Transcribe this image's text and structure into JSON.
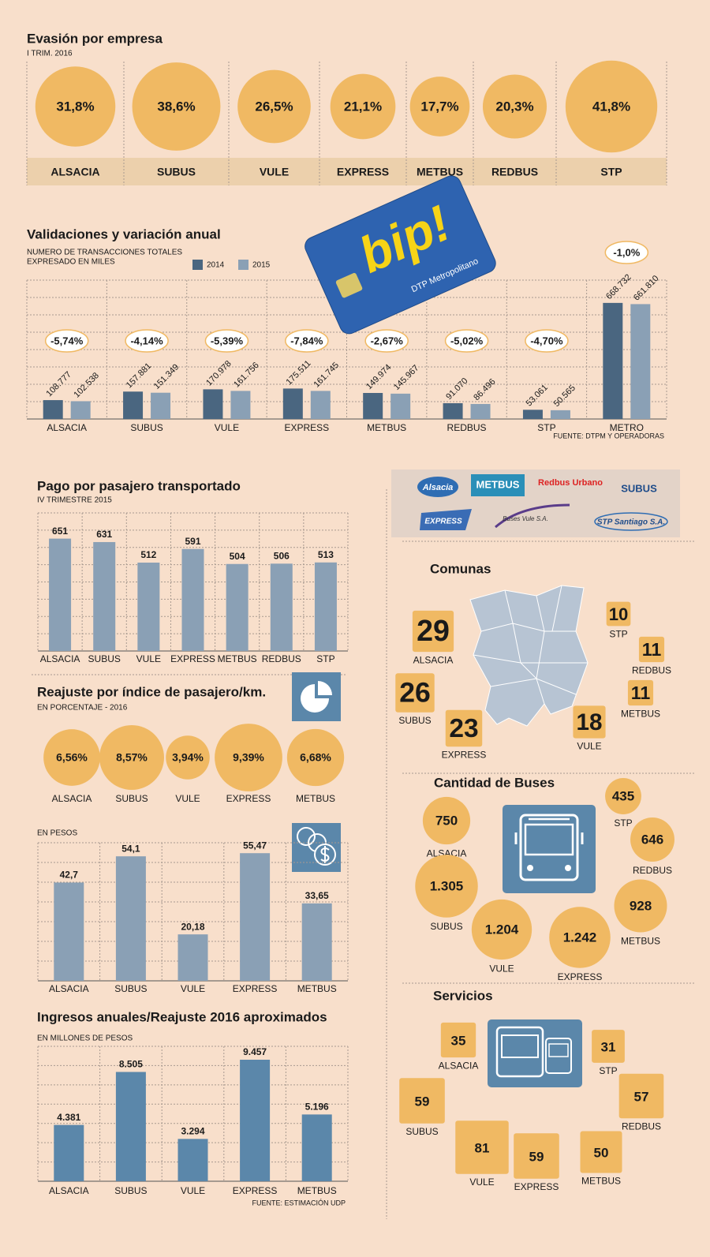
{
  "chart_data": [
    {
      "type": "bubble",
      "title": "Evasión por empresa",
      "subtitle": "I TRIM. 2016",
      "categories": [
        "ALSACIA",
        "SUBUS",
        "VULE",
        "EXPRESS",
        "METBUS",
        "REDBUS",
        "STP"
      ],
      "values": [
        31.8,
        38.6,
        26.5,
        21.1,
        17.7,
        20.3,
        41.8
      ],
      "value_labels": [
        "31,8%",
        "38,6%",
        "26,5%",
        "21,1%",
        "17,7%",
        "20,3%",
        "41,8%"
      ],
      "color": "#f0b963"
    },
    {
      "type": "bar",
      "title": "Validaciones y variación anual",
      "subtitle": [
        "NUMERO DE TRANSACCIONES TOTALES",
        "EXPRESADO EN MILES"
      ],
      "categories": [
        "ALSACIA",
        "SUBUS",
        "VULE",
        "EXPRESS",
        "METBUS",
        "REDBUS",
        "STP",
        "METRO"
      ],
      "series": [
        {
          "name": "2014",
          "color": "#4a6680",
          "values": [
            108777,
            157881,
            170978,
            175511,
            149974,
            91070,
            53061,
            668732
          ],
          "value_labels": [
            "108.777",
            "157.881",
            "170.978",
            "175.511",
            "149.974",
            "91.070",
            "53.061",
            "668.732"
          ]
        },
        {
          "name": "2015",
          "color": "#8aa0b5",
          "values": [
            102538,
            151349,
            161756,
            161745,
            145967,
            86496,
            50565,
            661810
          ],
          "value_labels": [
            "102.538",
            "151.349",
            "161.756",
            "161.745",
            "145.967",
            "86.496",
            "50.565",
            "661.810"
          ]
        }
      ],
      "variation": {
        "values": [
          -5.74,
          -4.14,
          -5.39,
          -7.84,
          -2.67,
          -5.02,
          -4.7,
          -1.0
        ],
        "value_labels": [
          "-5,74%",
          "-4,14%",
          "-5,39%",
          "-7,84%",
          "-2,67%",
          "-5,02%",
          "-4,70%",
          "-1,0%"
        ]
      },
      "source": "FUENTE: DTPM Y  OPERADORAS",
      "ylim": [
        0,
        800000
      ],
      "grid": true
    },
    {
      "type": "bar",
      "title": "Pago por pasajero transportado",
      "subtitle": "IV TRIMESTRE 2015",
      "categories": [
        "ALSACIA",
        "SUBUS",
        "VULE",
        "EXPRESS",
        "METBUS",
        "REDBUS",
        "STP"
      ],
      "values": [
        651,
        631,
        512,
        591,
        504,
        506,
        513
      ],
      "color": "#8aa0b5",
      "ylim": [
        0,
        800
      ],
      "grid": true
    },
    {
      "type": "bubble",
      "title": "Reajuste por índice de pasajero/km.",
      "subtitle": "EN PORCENTAJE - 2016",
      "categories": [
        "ALSACIA",
        "SUBUS",
        "VULE",
        "EXPRESS",
        "METBUS"
      ],
      "values": [
        6.56,
        8.57,
        3.94,
        9.39,
        6.68
      ],
      "value_labels": [
        "6,56%",
        "8,57%",
        "3,94%",
        "9,39%",
        "6,68%"
      ],
      "color": "#f0b963"
    },
    {
      "type": "bar",
      "subtitle": "EN PESOS",
      "categories": [
        "ALSACIA",
        "SUBUS",
        "VULE",
        "EXPRESS",
        "METBUS"
      ],
      "values": [
        42.7,
        54.1,
        20.18,
        55.47,
        33.65
      ],
      "value_labels": [
        "42,7",
        "54,1",
        "20,18",
        "55,47",
        "33,65"
      ],
      "color": "#8aa0b5",
      "ylim": [
        0,
        60
      ],
      "grid": true
    },
    {
      "type": "bar",
      "title": "Ingresos anuales/Reajuste 2016 aproximados",
      "subtitle": "EN MILLONES DE PESOS",
      "categories": [
        "ALSACIA",
        "SUBUS",
        "VULE",
        "EXPRESS",
        "METBUS"
      ],
      "values": [
        4381,
        8505,
        3294,
        9457,
        5196
      ],
      "value_labels": [
        "4.381",
        "8.505",
        "3.294",
        "9.457",
        "5.196"
      ],
      "color": "#5b87aa",
      "ylim": [
        0,
        10500
      ],
      "grid": true,
      "source": "FUENTE: ESTIMACIÓN UDP"
    },
    {
      "type": "tiles",
      "title": "Comunas",
      "categories": [
        "ALSACIA",
        "STP",
        "REDBUS",
        "SUBUS",
        "METBUS",
        "EXPRESS",
        "VULE"
      ],
      "values": [
        29,
        10,
        11,
        26,
        11,
        23,
        18
      ],
      "color": "#f0b963"
    },
    {
      "type": "bubble",
      "title": "Cantidad de Buses",
      "categories": [
        "ALSACIA",
        "STP",
        "REDBUS",
        "SUBUS",
        "METBUS",
        "VULE",
        "EXPRESS"
      ],
      "values": [
        750,
        435,
        646,
        1305,
        928,
        1204,
        1242
      ],
      "value_labels": [
        "750",
        "435",
        "646",
        "1.305",
        "928",
        "1.204",
        "1.242"
      ],
      "color": "#f0b963"
    },
    {
      "type": "tiles",
      "title": "Servicios",
      "categories": [
        "ALSACIA",
        "STP",
        "REDBUS",
        "SUBUS",
        "VULE",
        "EXPRESS",
        "METBUS"
      ],
      "values": [
        35,
        31,
        57,
        59,
        81,
        59,
        50
      ],
      "color": "#f0b963"
    }
  ],
  "card": {
    "brand": "bip!",
    "operator": "DTP Metropolitano"
  },
  "logos": [
    "Alsacia",
    "METBUS",
    "Redbus Urbano",
    "SUBUS",
    "EXPRESS",
    "Buses Vule S.A.",
    "STP Santiago S.A."
  ]
}
